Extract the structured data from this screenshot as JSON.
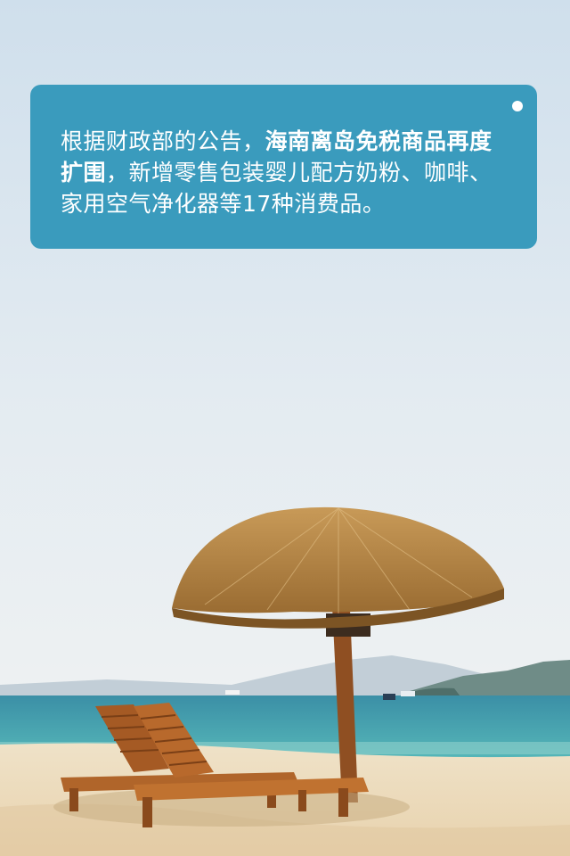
{
  "notice": {
    "intro": "根据财政部的公告，",
    "highlight": "海南离岛免税商品再度扩围",
    "rest": "，新增零售包装婴儿配方奶粉、咖啡、家用空气净化器等17种消费品。"
  },
  "scene": {
    "sky_top": "#d3e2ee",
    "sky_bottom": "#e8eef2",
    "sea": "#2f8fa0",
    "sand": "#f0dfc0",
    "thatch": "#b98a4a",
    "wood": "#9c5a2a",
    "box_color": "#3a9bbd"
  }
}
